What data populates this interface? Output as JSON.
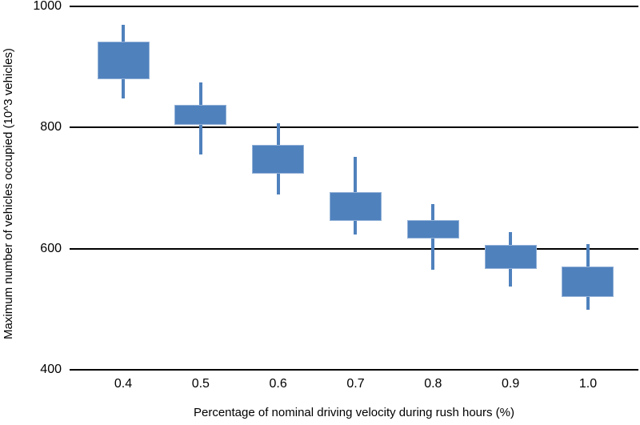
{
  "colors": {
    "background": "#ffffff",
    "text": "#000000",
    "gridline": "#000000",
    "box_fill": "#4f81bd",
    "box_border": "#93b1d7",
    "whisker": "#4f81bd"
  },
  "chart_data": {
    "type": "boxplot",
    "box_style": "floating box with high/low whiskers, no median line",
    "title": "",
    "xlabel": "Percentage of nominal driving velocity during rush hours (%)",
    "ylabel": "Maximum number of vehicles occupied (10^3 vehicles)",
    "categories": [
      "0.4",
      "0.5",
      "0.6",
      "0.7",
      "0.8",
      "0.9",
      "1.0"
    ],
    "ylim": [
      400,
      1000
    ],
    "yticks": [
      1000,
      800,
      600,
      400
    ],
    "grid": "horizontal solid black lines at each y tick, no vertical axis line",
    "legend": "none",
    "series": [
      {
        "category": "0.4",
        "box_low": 880,
        "box_high": 942,
        "whisker_low": 848,
        "whisker_high": 970
      },
      {
        "category": "0.5",
        "box_low": 804,
        "box_high": 838,
        "whisker_low": 756,
        "whisker_high": 874
      },
      {
        "category": "0.6",
        "box_low": 724,
        "box_high": 772,
        "whisker_low": 690,
        "whisker_high": 807
      },
      {
        "category": "0.7",
        "box_low": 646,
        "box_high": 694,
        "whisker_low": 623,
        "whisker_high": 751
      },
      {
        "category": "0.8",
        "box_low": 617,
        "box_high": 647,
        "whisker_low": 565,
        "whisker_high": 674
      },
      {
        "category": "0.9",
        "box_low": 567,
        "box_high": 606,
        "whisker_low": 537,
        "whisker_high": 627
      },
      {
        "category": "1.0",
        "box_low": 520,
        "box_high": 570,
        "whisker_low": 499,
        "whisker_high": 608
      }
    ]
  }
}
